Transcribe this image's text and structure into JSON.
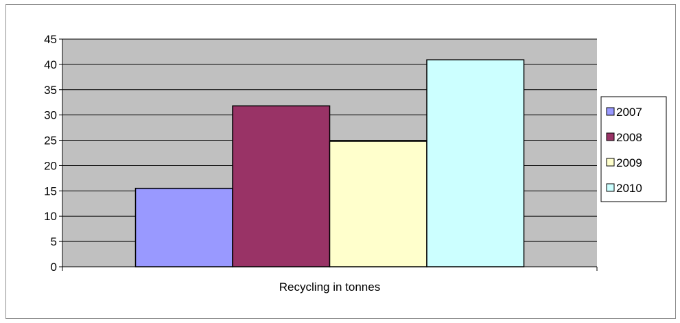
{
  "chart_data": {
    "type": "bar",
    "categories": [
      "Recycling in tonnes"
    ],
    "series": [
      {
        "name": "2007",
        "values": [
          15.5
        ],
        "color": "#9999ff"
      },
      {
        "name": "2008",
        "values": [
          31.8
        ],
        "color": "#993366"
      },
      {
        "name": "2009",
        "values": [
          24.8
        ],
        "color": "#ffffcc"
      },
      {
        "name": "2010",
        "values": [
          40.9
        ],
        "color": "#ccffff"
      }
    ],
    "title": "",
    "xlabel": "Recycling in tonnes",
    "ylabel": "",
    "ylim": [
      0,
      45
    ],
    "yticks": [
      0,
      5,
      10,
      15,
      20,
      25,
      30,
      35,
      40,
      45
    ],
    "grid": true,
    "legend_position": "right",
    "plot_background": "#c0c0c0"
  }
}
